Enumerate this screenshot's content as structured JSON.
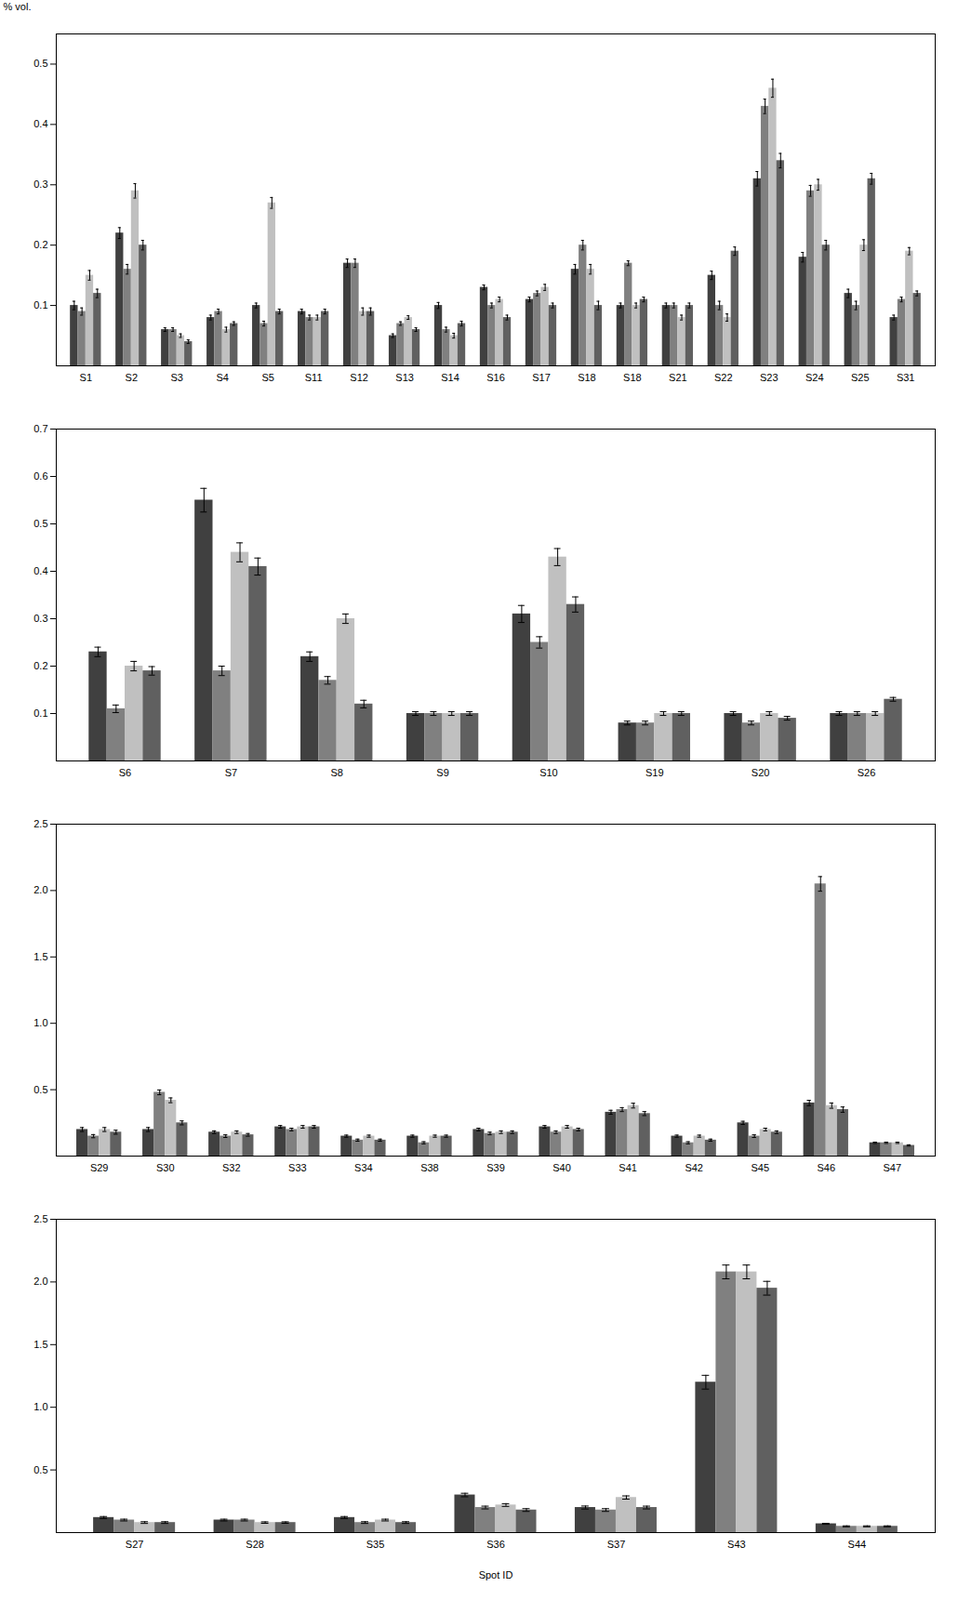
{
  "chart_data": [
    {
      "type": "bar",
      "categories": [
        "S1",
        "S2",
        "S3",
        "S4",
        "S5",
        "S11",
        "S12",
        "S13",
        "S14",
        "S16",
        "S17",
        "S18",
        "S18",
        "S21",
        "S22",
        "S23",
        "S24",
        "S25",
        "S31"
      ],
      "ylabel": "% vol.",
      "ylim": [
        0,
        0.55
      ],
      "yticks": [
        0.1,
        0.2,
        0.3,
        0.4,
        0.5
      ],
      "grid": false,
      "series": [
        {
          "color": "#404040",
          "values": [
            0.1,
            0.22,
            0.06,
            0.08,
            0.1,
            0.09,
            0.17,
            0.05,
            0.1,
            0.13,
            0.11,
            0.16,
            0.1,
            0.1,
            0.15,
            0.31,
            0.18,
            0.12,
            0.08
          ],
          "errors": [
            0.007,
            0.009,
            0.003,
            0.004,
            0.004,
            0.004,
            0.007,
            0.003,
            0.005,
            0.004,
            0.004,
            0.008,
            0.004,
            0.004,
            0.007,
            0.012,
            0.008,
            0.007,
            0.004
          ]
        },
        {
          "color": "#808080",
          "values": [
            0.09,
            0.16,
            0.06,
            0.09,
            0.07,
            0.08,
            0.17,
            0.07,
            0.06,
            0.1,
            0.12,
            0.2,
            0.17,
            0.1,
            0.1,
            0.43,
            0.29,
            0.1,
            0.11
          ],
          "errors": [
            0.006,
            0.008,
            0.003,
            0.004,
            0.004,
            0.004,
            0.007,
            0.003,
            0.004,
            0.004,
            0.004,
            0.008,
            0.004,
            0.004,
            0.007,
            0.012,
            0.009,
            0.007,
            0.004
          ]
        },
        {
          "color": "#c0c0c0",
          "values": [
            0.15,
            0.29,
            0.05,
            0.06,
            0.27,
            0.08,
            0.09,
            0.08,
            0.05,
            0.11,
            0.13,
            0.16,
            0.1,
            0.08,
            0.08,
            0.46,
            0.3,
            0.2,
            0.19
          ],
          "errors": [
            0.008,
            0.012,
            0.003,
            0.004,
            0.009,
            0.004,
            0.006,
            0.003,
            0.004,
            0.004,
            0.005,
            0.008,
            0.004,
            0.004,
            0.006,
            0.015,
            0.009,
            0.009,
            0.006
          ]
        },
        {
          "color": "#606060",
          "values": [
            0.12,
            0.2,
            0.04,
            0.07,
            0.09,
            0.09,
            0.09,
            0.06,
            0.07,
            0.08,
            0.1,
            0.1,
            0.11,
            0.1,
            0.19,
            0.34,
            0.2,
            0.31,
            0.12
          ],
          "errors": [
            0.007,
            0.008,
            0.003,
            0.003,
            0.004,
            0.004,
            0.006,
            0.003,
            0.004,
            0.004,
            0.004,
            0.007,
            0.004,
            0.004,
            0.007,
            0.012,
            0.008,
            0.009,
            0.004
          ]
        }
      ]
    },
    {
      "type": "bar",
      "categories": [
        "S6",
        "S7",
        "S8",
        "S9",
        "S10",
        "S19",
        "S20",
        "S26"
      ],
      "ylim": [
        0,
        0.7
      ],
      "yticks": [
        0.1,
        0.2,
        0.3,
        0.4,
        0.5,
        0.6,
        0.7
      ],
      "grid": false,
      "series": [
        {
          "color": "#404040",
          "values": [
            0.23,
            0.55,
            0.22,
            0.1,
            0.31,
            0.08,
            0.1,
            0.1
          ],
          "errors": [
            0.01,
            0.025,
            0.01,
            0.004,
            0.018,
            0.004,
            0.004,
            0.004
          ]
        },
        {
          "color": "#808080",
          "values": [
            0.11,
            0.19,
            0.17,
            0.1,
            0.25,
            0.08,
            0.08,
            0.1
          ],
          "errors": [
            0.008,
            0.01,
            0.008,
            0.004,
            0.012,
            0.004,
            0.004,
            0.004
          ]
        },
        {
          "color": "#c0c0c0",
          "values": [
            0.2,
            0.44,
            0.3,
            0.1,
            0.43,
            0.1,
            0.1,
            0.1
          ],
          "errors": [
            0.01,
            0.02,
            0.01,
            0.004,
            0.018,
            0.004,
            0.004,
            0.004
          ]
        },
        {
          "color": "#606060",
          "values": [
            0.19,
            0.41,
            0.12,
            0.1,
            0.33,
            0.1,
            0.09,
            0.13
          ],
          "errors": [
            0.009,
            0.018,
            0.008,
            0.004,
            0.016,
            0.004,
            0.004,
            0.004
          ]
        }
      ]
    },
    {
      "type": "bar",
      "categories": [
        "S29",
        "S30",
        "S32",
        "S33",
        "S34",
        "S38",
        "S39",
        "S40",
        "S41",
        "S42",
        "S45",
        "S46",
        "S47"
      ],
      "ylim": [
        0,
        2.5
      ],
      "yticks": [
        0.5,
        {
          "value": 1.0,
          "label": "1.0"
        },
        1.5,
        {
          "value": 2.0,
          "label": "2.0"
        },
        2.5
      ],
      "grid": false,
      "series": [
        {
          "color": "#404040",
          "values": [
            0.2,
            0.2,
            0.18,
            0.22,
            0.15,
            0.15,
            0.2,
            0.22,
            0.33,
            0.15,
            0.25,
            0.4,
            0.1
          ],
          "errors": [
            0.015,
            0.015,
            0.01,
            0.01,
            0.008,
            0.008,
            0.01,
            0.01,
            0.015,
            0.008,
            0.012,
            0.02,
            0.005
          ]
        },
        {
          "color": "#808080",
          "values": [
            0.15,
            0.48,
            0.15,
            0.2,
            0.12,
            0.1,
            0.17,
            0.18,
            0.35,
            0.1,
            0.15,
            2.05,
            0.1
          ],
          "errors": [
            0.012,
            0.018,
            0.01,
            0.01,
            0.008,
            0.008,
            0.01,
            0.01,
            0.015,
            0.008,
            0.01,
            0.055,
            0.005
          ]
        },
        {
          "color": "#c0c0c0",
          "values": [
            0.2,
            0.42,
            0.18,
            0.22,
            0.15,
            0.15,
            0.18,
            0.22,
            0.38,
            0.15,
            0.2,
            0.38,
            0.1
          ],
          "errors": [
            0.015,
            0.018,
            0.01,
            0.01,
            0.008,
            0.008,
            0.01,
            0.01,
            0.018,
            0.008,
            0.01,
            0.02,
            0.005
          ]
        },
        {
          "color": "#606060",
          "values": [
            0.18,
            0.25,
            0.16,
            0.22,
            0.12,
            0.15,
            0.18,
            0.2,
            0.32,
            0.12,
            0.18,
            0.35,
            0.08
          ],
          "errors": [
            0.015,
            0.015,
            0.01,
            0.01,
            0.008,
            0.008,
            0.01,
            0.01,
            0.015,
            0.008,
            0.01,
            0.02,
            0.005
          ]
        }
      ]
    },
    {
      "type": "bar",
      "categories": [
        "S27",
        "S28",
        "S35",
        "S36",
        "S37",
        "S43",
        "S44"
      ],
      "xlabel": "Spot ID",
      "ylim": [
        0,
        2.5
      ],
      "yticks": [
        0.5,
        {
          "value": 1.0,
          "label": "1.0"
        },
        1.5,
        {
          "value": 2.0,
          "label": "2.0"
        },
        2.5
      ],
      "grid": false,
      "series": [
        {
          "color": "#404040",
          "values": [
            0.12,
            0.1,
            0.12,
            0.3,
            0.2,
            1.2,
            0.07
          ],
          "errors": [
            0.008,
            0.007,
            0.008,
            0.014,
            0.012,
            0.055,
            0.004
          ]
        },
        {
          "color": "#808080",
          "values": [
            0.1,
            0.1,
            0.08,
            0.2,
            0.18,
            2.08,
            0.05
          ],
          "errors": [
            0.007,
            0.007,
            0.007,
            0.011,
            0.011,
            0.055,
            0.004
          ]
        },
        {
          "color": "#c0c0c0",
          "values": [
            0.08,
            0.08,
            0.1,
            0.22,
            0.28,
            2.08,
            0.05
          ],
          "errors": [
            0.007,
            0.006,
            0.007,
            0.011,
            0.013,
            0.055,
            0.004
          ]
        },
        {
          "color": "#606060",
          "values": [
            0.08,
            0.08,
            0.08,
            0.18,
            0.2,
            1.95,
            0.05
          ],
          "errors": [
            0.007,
            0.006,
            0.007,
            0.011,
            0.011,
            0.055,
            0.004
          ]
        }
      ]
    }
  ]
}
